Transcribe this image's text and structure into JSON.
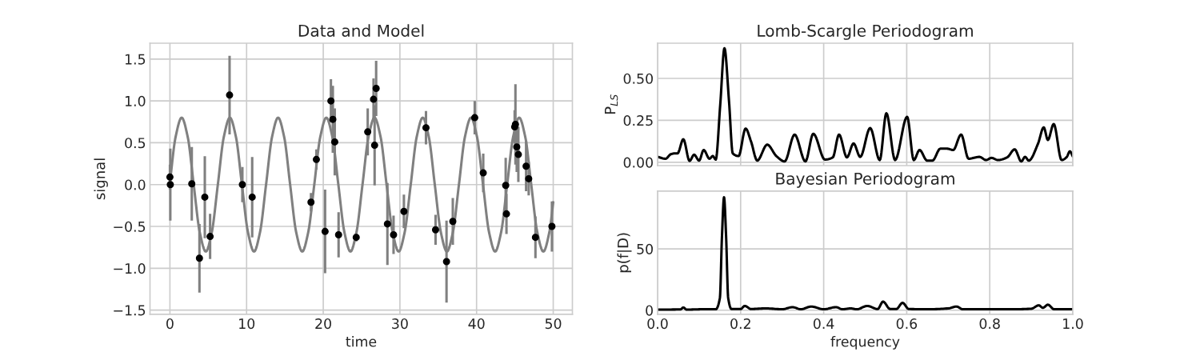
{
  "chart_data": [
    {
      "type": "scatter",
      "title": "Data and Model",
      "xlabel": "time",
      "ylabel": "signal",
      "grid": true,
      "xlim": [
        -2.6,
        52.5
      ],
      "ylim": [
        -1.55,
        1.69
      ],
      "xticks": [
        0,
        10,
        20,
        30,
        40,
        50
      ],
      "yticks": [
        {
          "value": -1.5,
          "label": "−1.5"
        },
        {
          "value": -1.0,
          "label": "−1.0"
        },
        {
          "value": -0.5,
          "label": "−0.5"
        },
        {
          "value": 0.0,
          "label": "0.0"
        },
        {
          "value": 0.5,
          "label": "0.5"
        },
        {
          "value": 1.0,
          "label": "1.0"
        },
        {
          "value": 1.5,
          "label": "1.5"
        }
      ],
      "series": [
        {
          "type": "line",
          "color": "#808080",
          "marker": "none",
          "line_style": "solid",
          "x": [
            0,
            0.74,
            1.53,
            2.32,
            3.1,
            3.89,
            4.68,
            5.46,
            6.25,
            7.03,
            7.82,
            8.61,
            9.39,
            10.18,
            10.97,
            11.75,
            12.54,
            13.32,
            14.11,
            14.9,
            15.68,
            16.47,
            17.26,
            18.04,
            18.83,
            19.61,
            20.4,
            21.19,
            21.97,
            22.76,
            23.55,
            24.33,
            25.12,
            25.9,
            26.69,
            27.48,
            28.26,
            29.05,
            29.84,
            30.62,
            31.41,
            32.19,
            32.98,
            33.77,
            34.55,
            35.34,
            36.13,
            36.91,
            37.7,
            38.48,
            39.27,
            40.06,
            40.84,
            41.63,
            42.42,
            43.2,
            43.99,
            44.77,
            45.56,
            46.35,
            47.13,
            47.92,
            48.71,
            49.49,
            50
          ],
          "values": [
            0.03,
            0.57,
            0.8,
            0.57,
            0,
            -0.57,
            -0.8,
            -0.57,
            0,
            0.57,
            0.8,
            0.57,
            0,
            -0.57,
            -0.8,
            -0.57,
            0,
            0.57,
            0.8,
            0.57,
            0,
            -0.57,
            -0.8,
            -0.57,
            0,
            0.57,
            0.8,
            0.57,
            0,
            -0.57,
            -0.8,
            -0.57,
            0,
            0.57,
            0.8,
            0.57,
            0,
            -0.57,
            -0.8,
            -0.57,
            0,
            0.57,
            0.8,
            0.57,
            0,
            -0.57,
            -0.8,
            -0.57,
            0,
            0.57,
            0.8,
            0.57,
            0,
            -0.57,
            -0.8,
            -0.57,
            0,
            0.57,
            0.8,
            0.57,
            0,
            -0.57,
            -0.8,
            -0.57,
            -0.21
          ]
        },
        {
          "type": "scatter",
          "color": "#000000",
          "marker": "circle",
          "x": [
            0.0,
            0.05,
            2.85,
            3.85,
            4.55,
            5.24,
            7.78,
            9.45,
            10.73,
            18.4,
            19.1,
            20.24,
            21.0,
            21.25,
            21.5,
            22.0,
            24.3,
            25.8,
            26.56,
            26.7,
            26.9,
            28.37,
            29.17,
            30.52,
            33.4,
            34.65,
            36.08,
            36.9,
            39.76,
            40.87,
            43.8,
            43.9,
            44.97,
            45.07,
            45.24,
            45.45,
            46.46,
            46.8,
            47.68,
            49.83
          ],
          "values": [
            0.09,
            0.0,
            0.01,
            -0.88,
            -0.15,
            -0.62,
            1.07,
            0.0,
            -0.15,
            -0.21,
            0.3,
            -0.56,
            1.0,
            0.78,
            0.51,
            -0.6,
            -0.63,
            0.63,
            1.02,
            0.47,
            1.15,
            -0.47,
            -0.6,
            -0.32,
            0.68,
            -0.54,
            -0.92,
            -0.44,
            0.8,
            0.14,
            -0.01,
            -0.35,
            0.69,
            0.72,
            0.45,
            0.36,
            0.22,
            0.07,
            -0.63,
            -0.5
          ],
          "errors": [
            0.15,
            0.43,
            0.44,
            0.41,
            0.49,
            0.27,
            0.47,
            0.21,
            0.48,
            0.11,
            0.12,
            0.5,
            0.26,
            0.4,
            0.4,
            0.27,
            0.05,
            0.28,
            0.25,
            0.48,
            0.33,
            0.49,
            0.23,
            0.2,
            0.2,
            0.18,
            0.49,
            0.28,
            0.2,
            0.23,
            0.33,
            0.24,
            0.2,
            0.48,
            0.3,
            0.33,
            0.3,
            0.2,
            0.25,
            0.3
          ]
        }
      ]
    },
    {
      "type": "line",
      "title": "Lomb-Scargle Periodogram",
      "ylabel": "P$_{LS}$",
      "grid": true,
      "tick_labels": "y",
      "xlim": [
        0,
        1
      ],
      "ylim": [
        -0.02,
        0.71
      ],
      "xticks": [
        0.0,
        0.2,
        0.4,
        0.6,
        0.8,
        1.0
      ],
      "yticks": [
        {
          "value": 0.0,
          "label": "0.00"
        },
        {
          "value": 0.25,
          "label": "0.25"
        },
        {
          "value": 0.5,
          "label": "0.50"
        }
      ],
      "series": [
        {
          "color": "#000000",
          "x": [
            0,
            0.019,
            0.032,
            0.042,
            0.048,
            0.062,
            0.077,
            0.088,
            0.1,
            0.111,
            0.125,
            0.133,
            0.14,
            0.151,
            0.161,
            0.172,
            0.181,
            0.195,
            0.212,
            0.225,
            0.24,
            0.264,
            0.286,
            0.306,
            0.33,
            0.356,
            0.375,
            0.403,
            0.422,
            0.437,
            0.456,
            0.472,
            0.488,
            0.512,
            0.535,
            0.551,
            0.572,
            0.601,
            0.617,
            0.631,
            0.649,
            0.662,
            0.681,
            0.697,
            0.712,
            0.731,
            0.749,
            0.775,
            0.791,
            0.804,
            0.82,
            0.842,
            0.86,
            0.876,
            0.885,
            0.894,
            0.916,
            0.93,
            0.94,
            0.954,
            0.973,
            0.985,
            0.993,
            1.0
          ],
          "values": [
            0.032,
            0.021,
            0.048,
            0.053,
            0.053,
            0.137,
            0.008,
            0.045,
            0.01,
            0.073,
            0.021,
            0.037,
            0.016,
            0.348,
            0.68,
            0.364,
            0.053,
            0.037,
            0.201,
            0.124,
            0.01,
            0.105,
            0.037,
            0.005,
            0.165,
            0.005,
            0.17,
            0.016,
            0.029,
            0.165,
            0.029,
            0.112,
            0.032,
            0.204,
            0.013,
            0.292,
            0.013,
            0.271,
            0.013,
            0.073,
            0.01,
            0.01,
            0.081,
            0.081,
            0.073,
            0.165,
            0.021,
            0.032,
            0.013,
            0.026,
            0.013,
            0.029,
            0.077,
            0.005,
            0.032,
            0.01,
            0.109,
            0.208,
            0.133,
            0.228,
            0.013,
            0.03,
            0.065,
            0.035
          ]
        }
      ]
    },
    {
      "type": "line",
      "title": "Bayesian Periodogram",
      "xlabel": "frequency",
      "ylabel": "p(f|D)",
      "grid": true,
      "xlim": [
        0,
        1
      ],
      "ylim": [
        -3.3,
        97
      ],
      "xticks": [
        {
          "value": 0.0,
          "label": "0.0"
        },
        {
          "value": 0.2,
          "label": "0.2"
        },
        {
          "value": 0.4,
          "label": "0.4"
        },
        {
          "value": 0.6,
          "label": "0.6"
        },
        {
          "value": 0.8,
          "label": "0.8"
        },
        {
          "value": 1.0,
          "label": "1.0"
        }
      ],
      "yticks": [
        0,
        50
      ],
      "series": [
        {
          "color": "#000000",
          "x": [
            0,
            0.055,
            0.062,
            0.07,
            0.11,
            0.14,
            0.15,
            0.155,
            0.16,
            0.165,
            0.17,
            0.178,
            0.2,
            0.21,
            0.225,
            0.26,
            0.3,
            0.325,
            0.345,
            0.37,
            0.4,
            0.43,
            0.445,
            0.465,
            0.48,
            0.505,
            0.53,
            0.543,
            0.56,
            0.575,
            0.59,
            0.605,
            0.65,
            0.7,
            0.72,
            0.735,
            0.85,
            0.9,
            0.918,
            0.928,
            0.94,
            0.955,
            1.0
          ],
          "values": [
            0.5,
            0.7,
            2.2,
            0.5,
            0.8,
            0.8,
            10,
            60,
            92,
            60,
            10,
            1,
            1,
            3.5,
            1,
            1.5,
            0.8,
            2.5,
            0.8,
            3,
            0.8,
            2.5,
            0.8,
            1.5,
            0.8,
            3.5,
            1,
            7,
            1,
            1,
            6,
            1,
            0.8,
            1.5,
            3,
            0.8,
            0.8,
            1.2,
            4,
            2,
            4.5,
            0.8,
            0.8
          ]
        }
      ]
    }
  ]
}
